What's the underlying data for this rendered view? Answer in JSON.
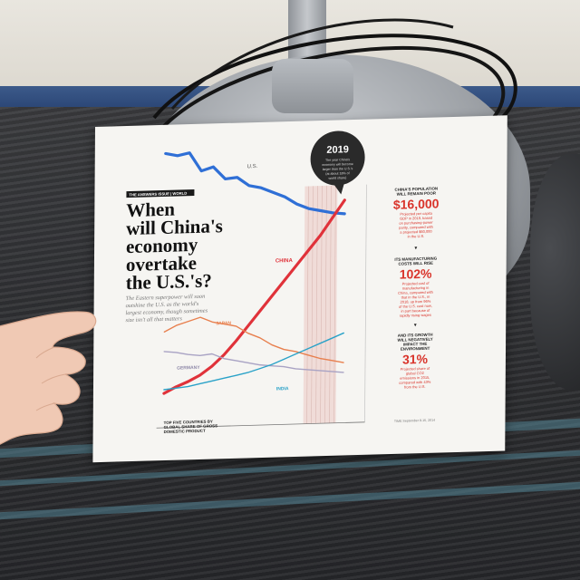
{
  "article": {
    "kicker": "THE ANSWERS ISSUE | WORLD",
    "headline_lines": [
      "When",
      "will China's",
      "economy",
      "overtake",
      "the U.S.'s?"
    ],
    "dek_lines": [
      "The Eastern superpower will soon",
      "outshine the U.S. as the world's",
      "largest economy, though sometimes",
      "size isn't all that matters"
    ]
  },
  "callout": {
    "year": "2019",
    "lines": [
      "The year China's",
      "economy will become",
      "larger than the U.S.'s",
      "(at about 18% of",
      "world share)"
    ]
  },
  "series_labels": {
    "us": "U.S.",
    "china": "CHINA",
    "japan": "JAPAN",
    "germany": "GERMANY",
    "india": "INDIA"
  },
  "chart_caption_lines": [
    "TOP FIVE COUNTRIES BY",
    "GLOBAL SHARE OF GROSS",
    "DOMESTIC PRODUCT"
  ],
  "sidebar": {
    "items": [
      {
        "heading_lines": [
          "CHINA'S POPULATION",
          "WILL REMAIN POOR"
        ],
        "stat": "$16,000",
        "body_lines": [
          "Projected per capita",
          "GDP in 2019, based",
          "on purchasing-power",
          "parity, compared with",
          "a projected $60,000",
          "in the U.S."
        ]
      },
      {
        "heading_lines": [
          "ITS MANUFACTURING",
          "COSTS WILL RISE"
        ],
        "stat": "102%",
        "body_lines": [
          "Projected cost of",
          "manufacturing in",
          "China, compared with",
          "that in the U.S., in",
          "2018, up from 96%",
          "of the U.S. cost now,",
          "in part because of",
          "rapidly rising wages"
        ]
      },
      {
        "heading_lines": [
          "AND ITS GROWTH",
          "WILL NEGATIVELY",
          "IMPACT THE",
          "ENVIRONMENT"
        ],
        "stat": "31%",
        "body_lines": [
          "Projected share of",
          "global CO2",
          "emissions in 2015,",
          "compared with 43%",
          "from the U.S."
        ]
      }
    ],
    "arrow": "▼"
  },
  "footer": {
    "issue": "TIME September 8-15, 2014"
  },
  "colors": {
    "us": "#2f6fd6",
    "china": "#e0323a",
    "japan": "#e8804f",
    "germany": "#a9a3c4",
    "india": "#2aa2c8",
    "accent_red": "#d9342b"
  },
  "chart_data": {
    "type": "line",
    "series": [
      {
        "name": "U.S.",
        "values": [
          22,
          21.8,
          22,
          20.5,
          20.8,
          19.8,
          19.9,
          19.2,
          19.0,
          18.6,
          18.2,
          17.6,
          17.2,
          17.0,
          16.8,
          16.7
        ]
      },
      {
        "name": "CHINA",
        "values": [
          2.5,
          3.0,
          3.4,
          3.9,
          4.6,
          5.5,
          6.6,
          7.8,
          9.0,
          10.2,
          11.4,
          12.6,
          13.8,
          15.0,
          16.4,
          17.8
        ]
      },
      {
        "name": "JAPAN",
        "values": [
          7.5,
          8.0,
          8.3,
          8.6,
          8.2,
          8.0,
          7.8,
          7.2,
          6.8,
          6.2,
          5.8,
          5.6,
          5.3,
          5.0,
          4.8,
          4.6
        ]
      },
      {
        "name": "GERMANY",
        "values": [
          5.9,
          5.8,
          5.6,
          5.5,
          5.6,
          5.2,
          5.0,
          4.8,
          4.6,
          4.5,
          4.4,
          4.2,
          4.1,
          4.0,
          3.9,
          3.8
        ]
      },
      {
        "name": "INDIA",
        "values": [
          2.8,
          2.9,
          3.0,
          3.2,
          3.4,
          3.6,
          3.8,
          4.0,
          4.3,
          4.6,
          5.0,
          5.4,
          5.8,
          6.2,
          6.6,
          7.0
        ]
      }
    ]
  }
}
